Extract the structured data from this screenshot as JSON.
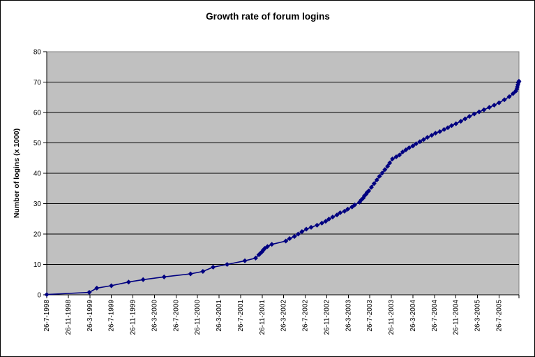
{
  "chart_data": {
    "type": "line",
    "title": "Growth rate of forum logins",
    "xlabel": "",
    "ylabel": "Number of logins (x 1000)",
    "ylim": [
      0,
      80
    ],
    "y_ticks": [
      0,
      10,
      20,
      30,
      40,
      50,
      60,
      70,
      80
    ],
    "x_range_months": [
      0,
      87.7
    ],
    "x_tick_interval_months": 4,
    "x_tick_labels": [
      "26-7-1998",
      "26-11-1998",
      "26-3-1999",
      "26-7-1999",
      "26-11-1999",
      "26-3-2000",
      "26-7-2000",
      "26-11-2000",
      "26-3-2001",
      "26-7-2001",
      "26-11-2001",
      "26-3-2002",
      "26-7-2002",
      "26-11-2002",
      "26-3-2003",
      "26-7-2003",
      "26-11-2003",
      "26-3-2004",
      "26-7-2004",
      "26-11-2004",
      "26-3-2005",
      "26-7-2005"
    ],
    "grid": "horizontal major gridlines, black",
    "legend": "none",
    "colors": {
      "series": "#000080",
      "plot_bg": "#C0C0C0",
      "plot_border": "#808080",
      "gridline": "#000000",
      "axis": "#000000",
      "text": "#000000"
    },
    "series": [
      {
        "name": "Number of logins (x 1000)",
        "marker": "diamond",
        "x_unit": "months since 26-7-1998",
        "points": [
          [
            0.0,
            0.1
          ],
          [
            7.9,
            0.8
          ],
          [
            9.3,
            2.2
          ],
          [
            12.0,
            3.0
          ],
          [
            15.2,
            4.2
          ],
          [
            17.9,
            5.0
          ],
          [
            21.8,
            5.9
          ],
          [
            26.7,
            6.9
          ],
          [
            29.0,
            7.7
          ],
          [
            30.9,
            9.1
          ],
          [
            33.5,
            10.0
          ],
          [
            36.8,
            11.2
          ],
          [
            38.8,
            12.1
          ],
          [
            39.4,
            13.2
          ],
          [
            39.7,
            13.7
          ],
          [
            40.0,
            14.2
          ],
          [
            40.2,
            14.7
          ],
          [
            40.5,
            15.3
          ],
          [
            41.0,
            15.9
          ],
          [
            41.8,
            16.6
          ],
          [
            44.4,
            17.7
          ],
          [
            45.1,
            18.5
          ],
          [
            46.0,
            19.2
          ],
          [
            46.7,
            20.0
          ],
          [
            47.4,
            20.8
          ],
          [
            48.2,
            21.6
          ],
          [
            49.1,
            22.2
          ],
          [
            50.2,
            22.9
          ],
          [
            51.1,
            23.6
          ],
          [
            51.8,
            24.2
          ],
          [
            52.4,
            24.9
          ],
          [
            53.1,
            25.6
          ],
          [
            53.9,
            26.3
          ],
          [
            54.5,
            27.0
          ],
          [
            55.3,
            27.5
          ],
          [
            55.9,
            28.2
          ],
          [
            56.7,
            28.9
          ],
          [
            57.2,
            29.6
          ],
          [
            58.1,
            30.5
          ],
          [
            58.4,
            31.2
          ],
          [
            58.8,
            31.9
          ],
          [
            59.0,
            32.6
          ],
          [
            59.3,
            33.1
          ],
          [
            59.5,
            33.7
          ],
          [
            59.8,
            34.2
          ],
          [
            60.3,
            35.4
          ],
          [
            60.8,
            36.6
          ],
          [
            61.3,
            37.8
          ],
          [
            61.8,
            39.0
          ],
          [
            62.3,
            40.1
          ],
          [
            62.8,
            41.2
          ],
          [
            63.3,
            42.3
          ],
          [
            63.7,
            43.4
          ],
          [
            64.2,
            44.7
          ],
          [
            64.9,
            45.4
          ],
          [
            65.5,
            46.0
          ],
          [
            66.1,
            47.0
          ],
          [
            66.7,
            47.7
          ],
          [
            67.3,
            48.4
          ],
          [
            68.0,
            49.0
          ],
          [
            68.6,
            49.7
          ],
          [
            69.3,
            50.4
          ],
          [
            70.0,
            51.1
          ],
          [
            70.7,
            51.8
          ],
          [
            71.5,
            52.5
          ],
          [
            72.2,
            53.2
          ],
          [
            73.0,
            53.7
          ],
          [
            73.8,
            54.4
          ],
          [
            74.5,
            55.0
          ],
          [
            75.2,
            55.7
          ],
          [
            76.0,
            56.3
          ],
          [
            76.9,
            57.1
          ],
          [
            77.7,
            57.9
          ],
          [
            78.5,
            58.7
          ],
          [
            79.4,
            59.5
          ],
          [
            80.3,
            60.2
          ],
          [
            81.2,
            60.9
          ],
          [
            82.2,
            61.7
          ],
          [
            83.1,
            62.4
          ],
          [
            84.0,
            63.2
          ],
          [
            85.0,
            64.2
          ],
          [
            85.9,
            65.2
          ],
          [
            86.6,
            66.2
          ],
          [
            87.1,
            67.0
          ],
          [
            87.3,
            67.7
          ],
          [
            87.4,
            68.4
          ],
          [
            87.5,
            69.1
          ],
          [
            87.6,
            69.8
          ],
          [
            87.7,
            70.3
          ]
        ]
      }
    ]
  }
}
